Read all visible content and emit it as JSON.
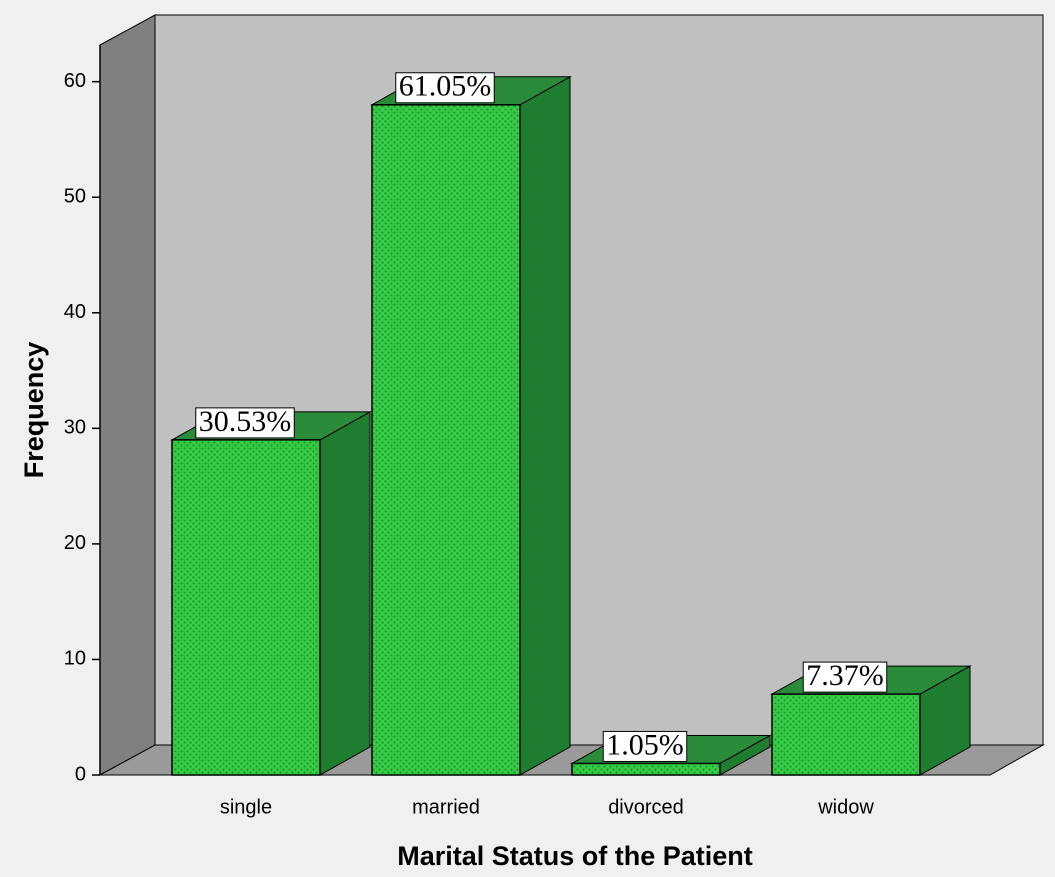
{
  "chart_data": {
    "type": "bar3d",
    "x_label": "Marital Status of the Patient",
    "y_label": "Frequency",
    "categories": [
      "single",
      "married",
      "divorced",
      "widow"
    ],
    "values": [
      29,
      58,
      1,
      7
    ],
    "value_labels": [
      "30.53%",
      "61.05%",
      "1.05%",
      "7.37%"
    ],
    "color": "#33cc44",
    "ylim": [
      0,
      63
    ],
    "yticks": [
      0,
      10,
      20,
      30,
      40,
      50,
      60
    ]
  }
}
